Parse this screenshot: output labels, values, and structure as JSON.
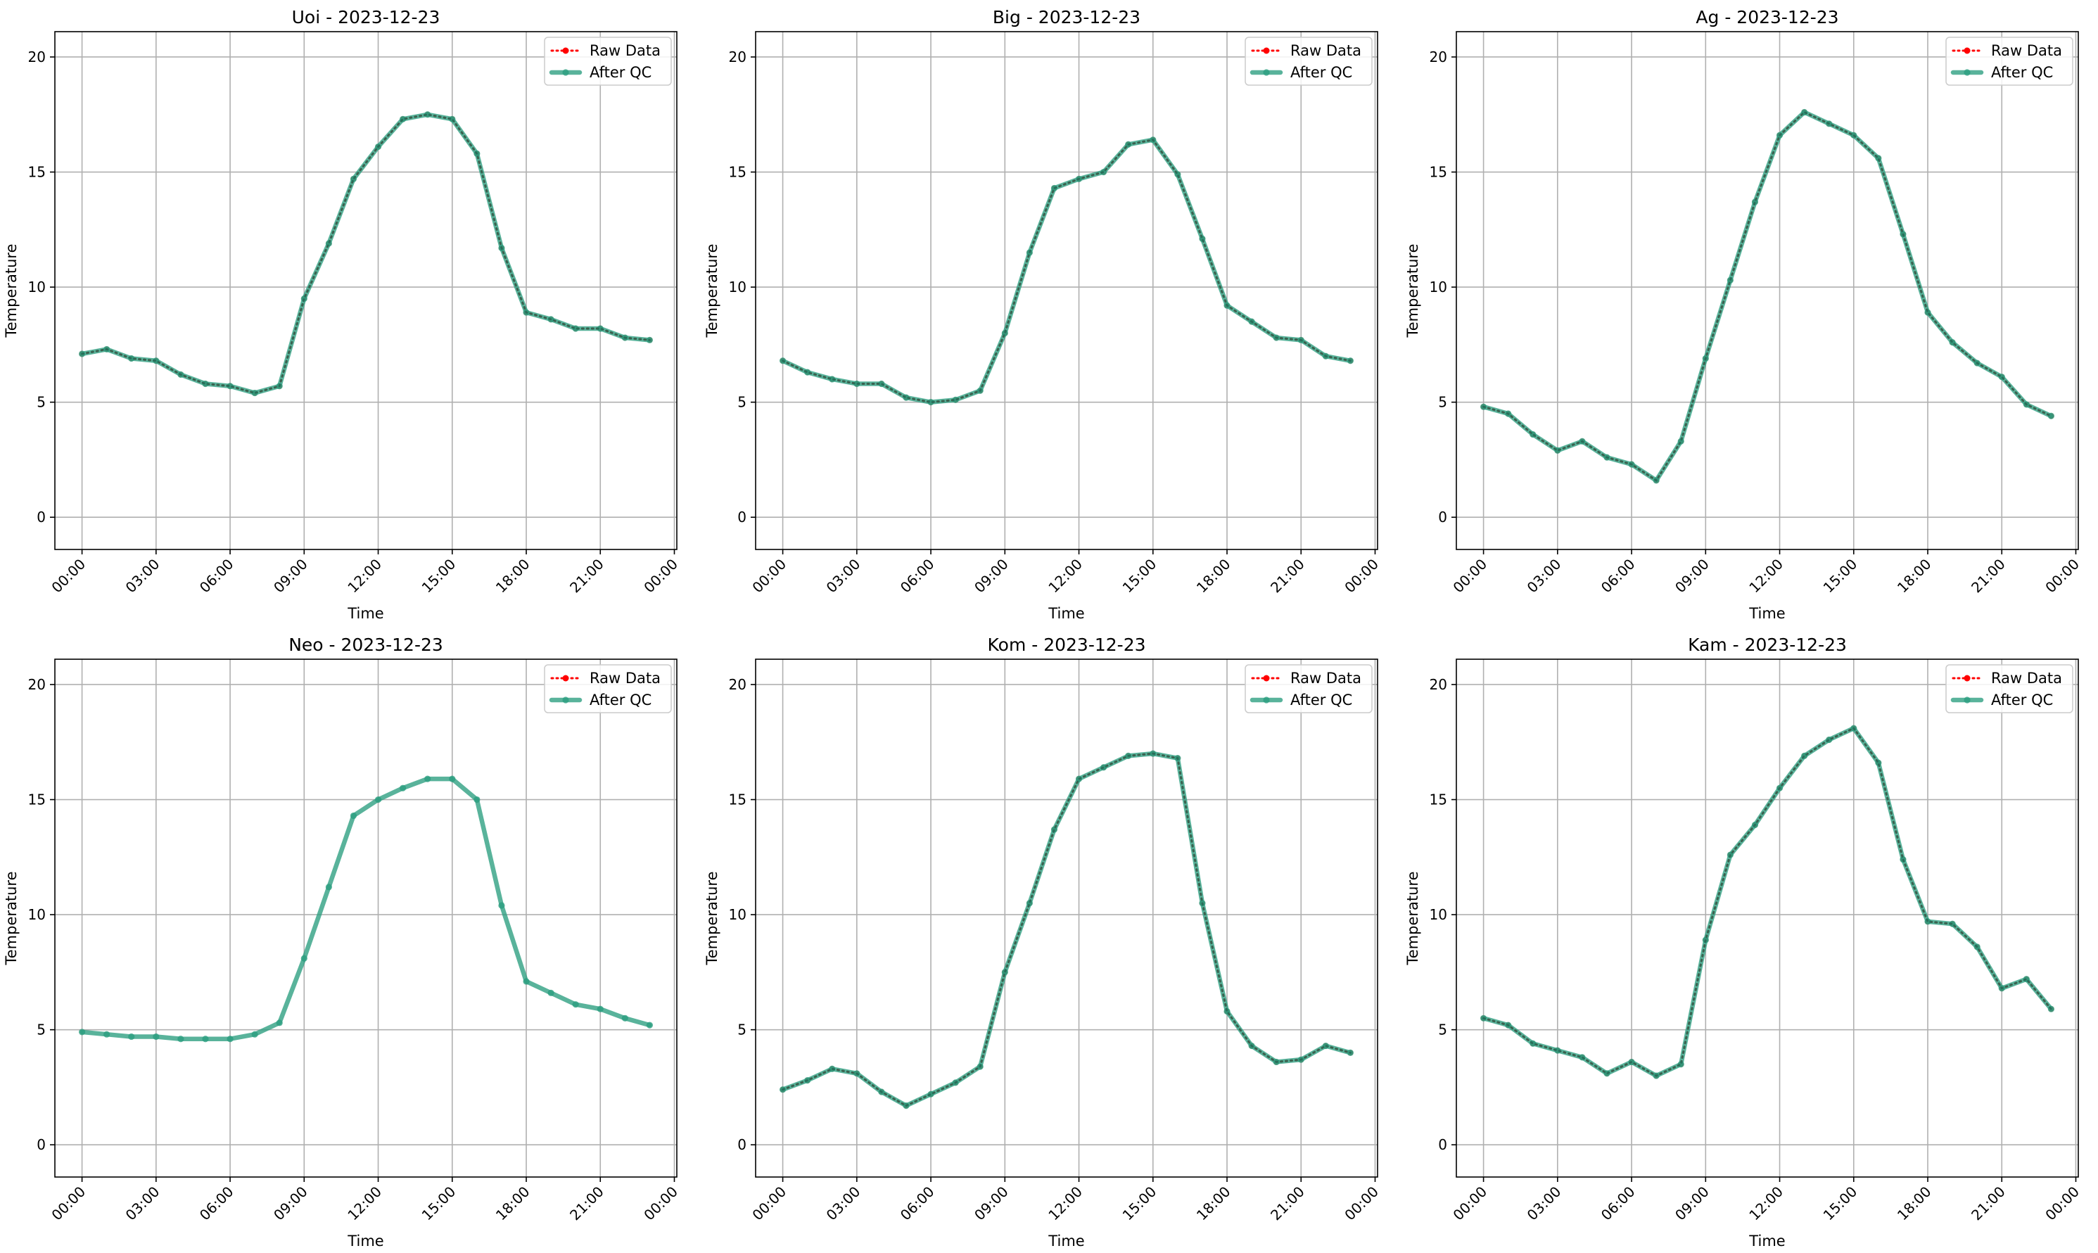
{
  "chart_data": [
    {
      "type": "line",
      "title": "Uoi - 2023-12-23",
      "xlabel": "Time",
      "ylabel": "Temperature",
      "x_unit": "hour",
      "xlim": [
        -1.1,
        24.1
      ],
      "ylim": [
        -1.4,
        21.1
      ],
      "xticks": [
        0,
        3,
        6,
        9,
        12,
        15,
        18,
        21,
        24
      ],
      "xtick_labels": [
        "00:00",
        "03:00",
        "06:00",
        "09:00",
        "12:00",
        "15:00",
        "18:00",
        "21:00",
        "00:00"
      ],
      "yticks": [
        0,
        5,
        10,
        15,
        20
      ],
      "ytick_labels": [
        "0",
        "5",
        "10",
        "15",
        "20"
      ],
      "grid": true,
      "legend": "top-right",
      "x": [
        0,
        1,
        2,
        3,
        4,
        5,
        6,
        7,
        8,
        9,
        10,
        11,
        12,
        13,
        14,
        15,
        16,
        17,
        18,
        19,
        20,
        21,
        22,
        23
      ],
      "series": [
        {
          "name": "Raw Data",
          "color": "#ff0000",
          "style": "dotted",
          "marker": "circle",
          "values": [
            7.1,
            7.3,
            6.9,
            6.8,
            6.2,
            5.8,
            5.7,
            5.4,
            5.7,
            9.5,
            11.9,
            14.7,
            16.1,
            17.3,
            17.5,
            17.3,
            15.8,
            11.7,
            8.9,
            8.6,
            8.2,
            8.2,
            7.8,
            7.7
          ]
        },
        {
          "name": "After QC",
          "color": "#2a9d7f",
          "style": "solid",
          "marker": "circle",
          "values": [
            7.1,
            7.3,
            6.9,
            6.8,
            6.2,
            5.8,
            5.7,
            5.4,
            5.7,
            9.5,
            11.9,
            14.7,
            16.1,
            17.3,
            17.5,
            17.3,
            15.8,
            11.7,
            8.9,
            8.6,
            8.2,
            8.2,
            7.8,
            7.7
          ]
        }
      ]
    },
    {
      "type": "line",
      "title": "Big - 2023-12-23",
      "xlabel": "Time",
      "ylabel": "Temperature",
      "x_unit": "hour",
      "xlim": [
        -1.1,
        24.1
      ],
      "ylim": [
        -1.4,
        21.1
      ],
      "xticks": [
        0,
        3,
        6,
        9,
        12,
        15,
        18,
        21,
        24
      ],
      "xtick_labels": [
        "00:00",
        "03:00",
        "06:00",
        "09:00",
        "12:00",
        "15:00",
        "18:00",
        "21:00",
        "00:00"
      ],
      "yticks": [
        0,
        5,
        10,
        15,
        20
      ],
      "ytick_labels": [
        "0",
        "5",
        "10",
        "15",
        "20"
      ],
      "grid": true,
      "legend": "top-right",
      "x": [
        0,
        1,
        2,
        3,
        4,
        5,
        6,
        7,
        8,
        9,
        10,
        11,
        12,
        13,
        14,
        15,
        16,
        17,
        18,
        19,
        20,
        21,
        22,
        23
      ],
      "series": [
        {
          "name": "Raw Data",
          "color": "#ff0000",
          "style": "dotted",
          "marker": "circle",
          "values": [
            6.8,
            6.3,
            6.0,
            5.8,
            5.8,
            5.2,
            5.0,
            5.1,
            5.5,
            8.0,
            11.5,
            14.3,
            14.7,
            15.0,
            16.2,
            16.4,
            14.9,
            12.1,
            9.2,
            8.5,
            7.8,
            7.7,
            7.0,
            6.8
          ]
        },
        {
          "name": "After QC",
          "color": "#2a9d7f",
          "style": "solid",
          "marker": "circle",
          "values": [
            6.8,
            6.3,
            6.0,
            5.8,
            5.8,
            5.2,
            5.0,
            5.1,
            5.5,
            8.0,
            11.5,
            14.3,
            14.7,
            15.0,
            16.2,
            16.4,
            14.9,
            12.1,
            9.2,
            8.5,
            7.8,
            7.7,
            7.0,
            6.8
          ]
        }
      ]
    },
    {
      "type": "line",
      "title": "Ag - 2023-12-23",
      "xlabel": "Time",
      "ylabel": "Temperature",
      "x_unit": "hour",
      "xlim": [
        -1.1,
        24.1
      ],
      "ylim": [
        -1.4,
        21.1
      ],
      "xticks": [
        0,
        3,
        6,
        9,
        12,
        15,
        18,
        21,
        24
      ],
      "xtick_labels": [
        "00:00",
        "03:00",
        "06:00",
        "09:00",
        "12:00",
        "15:00",
        "18:00",
        "21:00",
        "00:00"
      ],
      "yticks": [
        0,
        5,
        10,
        15,
        20
      ],
      "ytick_labels": [
        "0",
        "5",
        "10",
        "15",
        "20"
      ],
      "grid": true,
      "legend": "top-right",
      "x": [
        0,
        1,
        2,
        3,
        4,
        5,
        6,
        7,
        8,
        9,
        10,
        11,
        12,
        13,
        14,
        15,
        16,
        17,
        18,
        19,
        20,
        21,
        22,
        23
      ],
      "series": [
        {
          "name": "Raw Data",
          "color": "#ff0000",
          "style": "dotted",
          "marker": "circle",
          "values": [
            4.8,
            4.5,
            3.6,
            2.9,
            3.3,
            2.6,
            2.3,
            1.6,
            3.3,
            6.9,
            10.3,
            13.7,
            16.6,
            17.6,
            17.1,
            16.6,
            15.6,
            12.3,
            8.9,
            7.6,
            6.7,
            6.1,
            4.9,
            4.4
          ]
        },
        {
          "name": "After QC",
          "color": "#2a9d7f",
          "style": "solid",
          "marker": "circle",
          "values": [
            4.8,
            4.5,
            3.6,
            2.9,
            3.3,
            2.6,
            2.3,
            1.6,
            3.3,
            6.9,
            10.3,
            13.7,
            16.6,
            17.6,
            17.1,
            16.6,
            15.6,
            12.3,
            8.9,
            7.6,
            6.7,
            6.1,
            4.9,
            4.4
          ]
        }
      ]
    },
    {
      "type": "line",
      "title": "Neo - 2023-12-23",
      "xlabel": "Time",
      "ylabel": "Temperature",
      "x_unit": "hour",
      "xlim": [
        -1.1,
        24.1
      ],
      "ylim": [
        -1.4,
        21.1
      ],
      "xticks": [
        0,
        3,
        6,
        9,
        12,
        15,
        18,
        21,
        24
      ],
      "xtick_labels": [
        "00:00",
        "03:00",
        "06:00",
        "09:00",
        "12:00",
        "15:00",
        "18:00",
        "21:00",
        "00:00"
      ],
      "yticks": [
        0,
        5,
        10,
        15,
        20
      ],
      "ytick_labels": [
        "0",
        "5",
        "10",
        "15",
        "20"
      ],
      "grid": true,
      "legend": "top-right",
      "x": [
        0,
        1,
        2,
        3,
        4,
        5,
        6,
        7,
        8,
        9,
        10,
        11,
        12,
        13,
        14,
        15,
        16,
        17,
        18,
        19,
        20,
        21,
        22,
        23
      ],
      "series": [
        {
          "name": "Raw Data",
          "color": "#ff0000",
          "style": "dotted",
          "marker": "circle",
          "visible": false,
          "values": [
            4.9,
            4.8,
            4.7,
            4.7,
            4.6,
            4.6,
            4.6,
            4.8,
            5.3,
            8.1,
            11.2,
            14.3,
            15.0,
            15.5,
            15.9,
            15.9,
            15.0,
            10.4,
            7.1,
            6.6,
            6.1,
            5.9,
            5.5,
            5.2
          ]
        },
        {
          "name": "After QC",
          "color": "#2a9d7f",
          "style": "solid",
          "marker": "circle",
          "values": [
            4.9,
            4.8,
            4.7,
            4.7,
            4.6,
            4.6,
            4.6,
            4.8,
            5.3,
            8.1,
            11.2,
            14.3,
            15.0,
            15.5,
            15.9,
            15.9,
            15.0,
            10.4,
            7.1,
            6.6,
            6.1,
            5.9,
            5.5,
            5.2
          ]
        }
      ]
    },
    {
      "type": "line",
      "title": "Kom - 2023-12-23",
      "xlabel": "Time",
      "ylabel": "Temperature",
      "x_unit": "hour",
      "xlim": [
        -1.1,
        24.1
      ],
      "ylim": [
        -1.4,
        21.1
      ],
      "xticks": [
        0,
        3,
        6,
        9,
        12,
        15,
        18,
        21,
        24
      ],
      "xtick_labels": [
        "00:00",
        "03:00",
        "06:00",
        "09:00",
        "12:00",
        "15:00",
        "18:00",
        "21:00",
        "00:00"
      ],
      "yticks": [
        0,
        5,
        10,
        15,
        20
      ],
      "ytick_labels": [
        "0",
        "5",
        "10",
        "15",
        "20"
      ],
      "grid": true,
      "legend": "top-right",
      "x": [
        0,
        1,
        2,
        3,
        4,
        5,
        6,
        7,
        8,
        9,
        10,
        11,
        12,
        13,
        14,
        15,
        16,
        17,
        18,
        19,
        20,
        21,
        22,
        23
      ],
      "series": [
        {
          "name": "Raw Data",
          "color": "#ff0000",
          "style": "dotted",
          "marker": "circle",
          "values": [
            2.4,
            2.8,
            3.3,
            3.1,
            2.3,
            1.7,
            2.2,
            2.7,
            3.4,
            7.5,
            10.5,
            13.7,
            15.9,
            16.4,
            16.9,
            17.0,
            16.8,
            10.5,
            5.8,
            4.3,
            3.6,
            3.7,
            4.3,
            4.0
          ]
        },
        {
          "name": "After QC",
          "color": "#2a9d7f",
          "style": "solid",
          "marker": "circle",
          "values": [
            2.4,
            2.8,
            3.3,
            3.1,
            2.3,
            1.7,
            2.2,
            2.7,
            3.4,
            7.5,
            10.5,
            13.7,
            15.9,
            16.4,
            16.9,
            17.0,
            16.8,
            10.5,
            5.8,
            4.3,
            3.6,
            3.7,
            4.3,
            4.0
          ]
        }
      ]
    },
    {
      "type": "line",
      "title": "Kam - 2023-12-23",
      "xlabel": "Time",
      "ylabel": "Temperature",
      "x_unit": "hour",
      "xlim": [
        -1.1,
        24.1
      ],
      "ylim": [
        -1.4,
        21.1
      ],
      "xticks": [
        0,
        3,
        6,
        9,
        12,
        15,
        18,
        21,
        24
      ],
      "xtick_labels": [
        "00:00",
        "03:00",
        "06:00",
        "09:00",
        "12:00",
        "15:00",
        "18:00",
        "21:00",
        "00:00"
      ],
      "yticks": [
        0,
        5,
        10,
        15,
        20
      ],
      "ytick_labels": [
        "0",
        "5",
        "10",
        "15",
        "20"
      ],
      "grid": true,
      "legend": "top-right",
      "x": [
        0,
        1,
        2,
        3,
        4,
        5,
        6,
        7,
        8,
        9,
        10,
        11,
        12,
        13,
        14,
        15,
        16,
        17,
        18,
        19,
        20,
        21,
        22,
        23
      ],
      "series": [
        {
          "name": "Raw Data",
          "color": "#ff0000",
          "style": "dotted",
          "marker": "circle",
          "values": [
            5.5,
            5.2,
            4.4,
            4.1,
            3.8,
            3.1,
            3.6,
            3.0,
            3.5,
            8.9,
            12.6,
            13.9,
            15.5,
            16.9,
            17.6,
            18.1,
            16.6,
            12.4,
            9.7,
            9.6,
            8.6,
            6.8,
            7.2,
            5.9
          ]
        },
        {
          "name": "After QC",
          "color": "#2a9d7f",
          "style": "solid",
          "marker": "circle",
          "values": [
            5.5,
            5.2,
            4.4,
            4.1,
            3.8,
            3.1,
            3.6,
            3.0,
            3.5,
            8.9,
            12.6,
            13.9,
            15.5,
            16.9,
            17.6,
            18.1,
            16.6,
            12.4,
            9.7,
            9.6,
            8.6,
            6.8,
            7.2,
            5.9
          ]
        }
      ]
    }
  ]
}
